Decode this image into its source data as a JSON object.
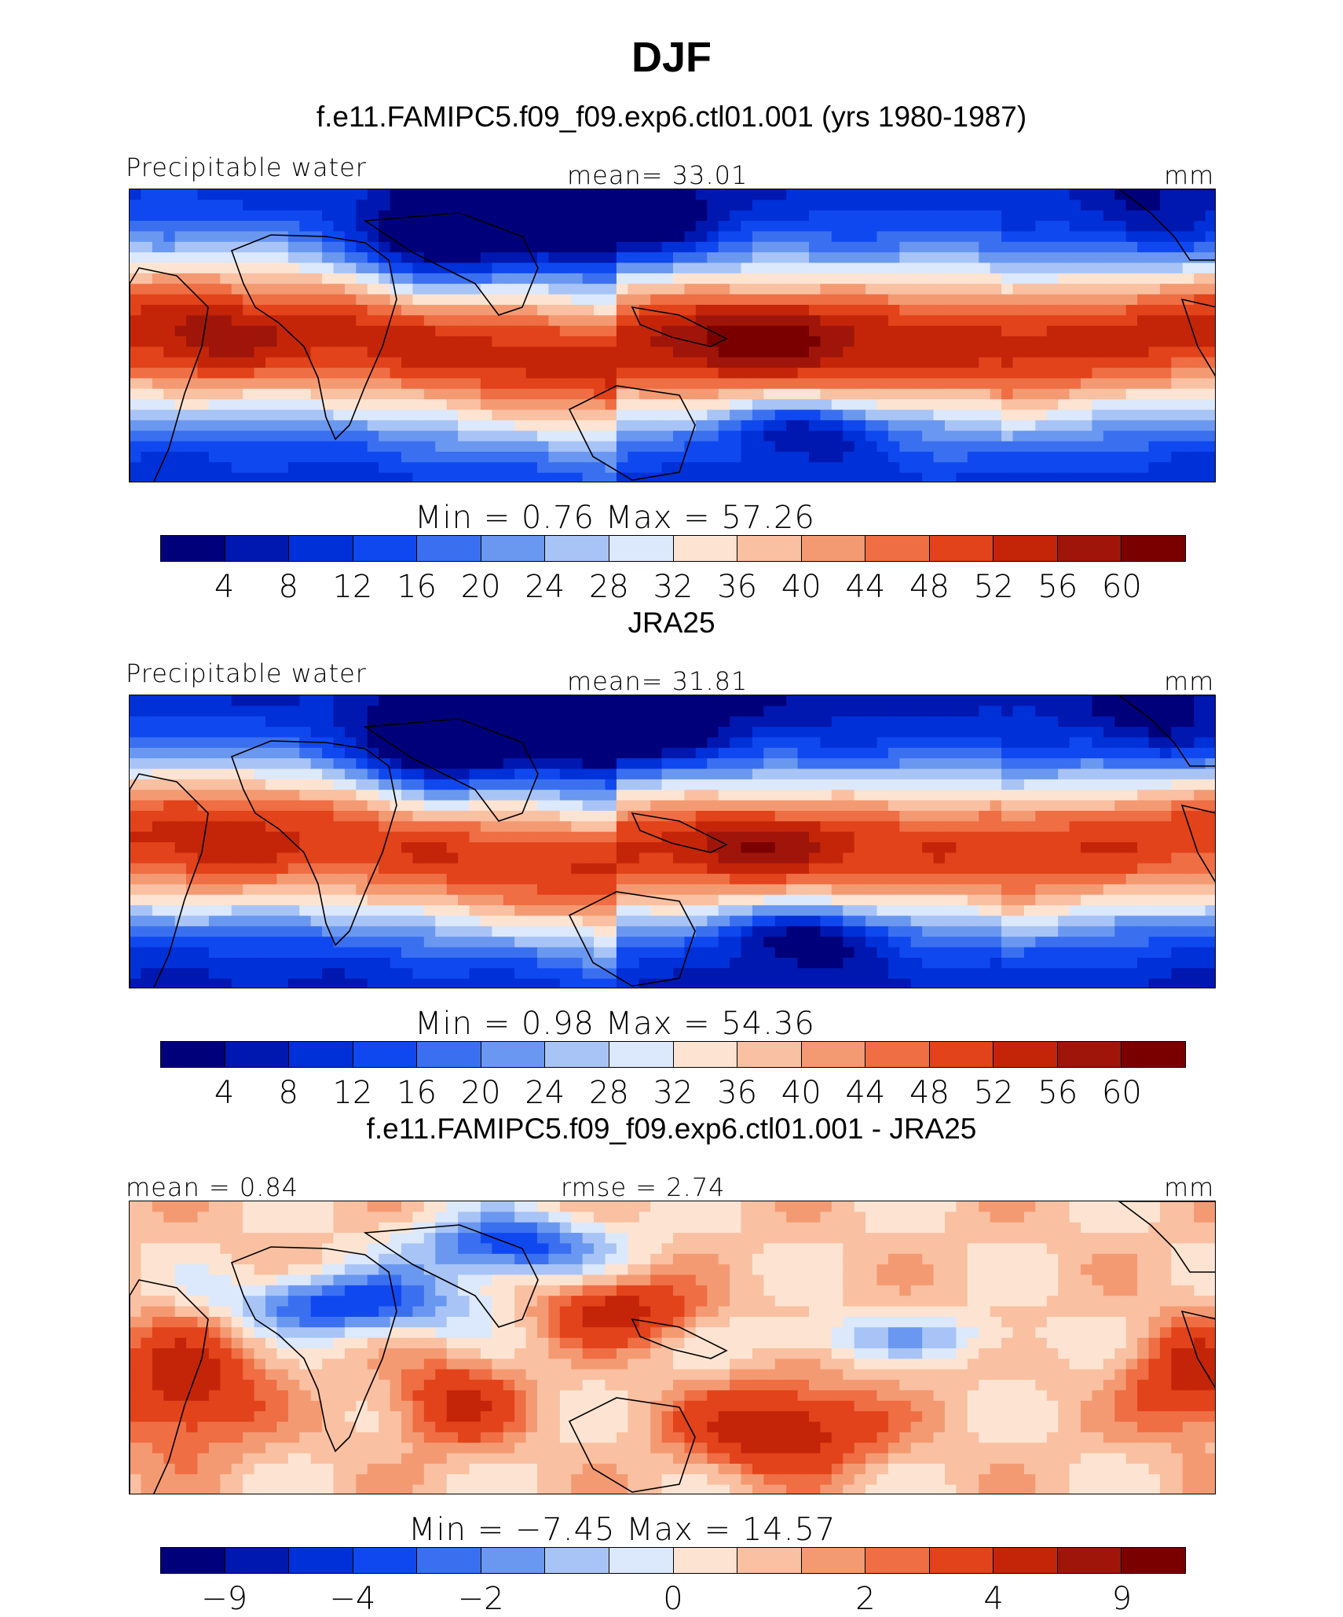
{
  "title": "DJF",
  "chart_data": [
    {
      "type": "heatmap",
      "panel_title": "f.e11.FAMIPC5.f09_f09.exp6.ctl01.001 (yrs 1980-1987)",
      "variable": "Precipitable water",
      "left_label": "Precipitable water",
      "center_label": "mean=   33.01",
      "units": "mm",
      "mean": 33.01,
      "min_max_label": "Min  =     0.76  Max  =    57.26",
      "min": 0.76,
      "max": 57.26,
      "colorbar_ticks": [
        "4",
        "8",
        "12",
        "16",
        "20",
        "24",
        "28",
        "32",
        "36",
        "40",
        "44",
        "48",
        "52",
        "56",
        "60"
      ],
      "colorbar_levels": [
        4,
        8,
        12,
        16,
        20,
        24,
        28,
        32,
        36,
        40,
        44,
        48,
        52,
        56,
        60
      ]
    },
    {
      "type": "heatmap",
      "panel_title": "JRA25",
      "variable": "Precipitable water",
      "left_label": "Precipitable water",
      "center_label": "mean=   31.81",
      "units": "mm",
      "mean": 31.81,
      "min_max_label": "Min  =     0.98  Max  =    54.36",
      "min": 0.98,
      "max": 54.36,
      "colorbar_ticks": [
        "4",
        "8",
        "12",
        "16",
        "20",
        "24",
        "28",
        "32",
        "36",
        "40",
        "44",
        "48",
        "52",
        "56",
        "60"
      ],
      "colorbar_levels": [
        4,
        8,
        12,
        16,
        20,
        24,
        28,
        32,
        36,
        40,
        44,
        48,
        52,
        56,
        60
      ]
    },
    {
      "type": "heatmap",
      "panel_title": "f.e11.FAMIPC5.f09_f09.exp6.ctl01.001 - JRA25",
      "variable": "Precipitable water difference",
      "left_label": "mean  =    0.84",
      "center_label": "rmse  =    2.74",
      "units": "mm",
      "mean": 0.84,
      "rmse": 2.74,
      "min_max_label": "Min  =  −7.45  Max  =    14.57",
      "min": -7.45,
      "max": 14.57,
      "colorbar_ticks": [
        "−9",
        "−4",
        "−2",
        "0",
        "2",
        "4",
        "9"
      ],
      "colorbar_levels": [
        -9,
        -6,
        -4,
        -3,
        -2,
        -1,
        0,
        1,
        2,
        3,
        4,
        6,
        9
      ]
    }
  ],
  "palette": [
    "#00007a",
    "#0018b0",
    "#0030d8",
    "#1048f0",
    "#3a70f0",
    "#6a98f0",
    "#a8c4f6",
    "#dce8fb",
    "#fde4d2",
    "#f9c0a2",
    "#f49a72",
    "#ef6e44",
    "#e2431a",
    "#c42508",
    "#a0150a",
    "#7a0000"
  ],
  "land_color": "#000000"
}
